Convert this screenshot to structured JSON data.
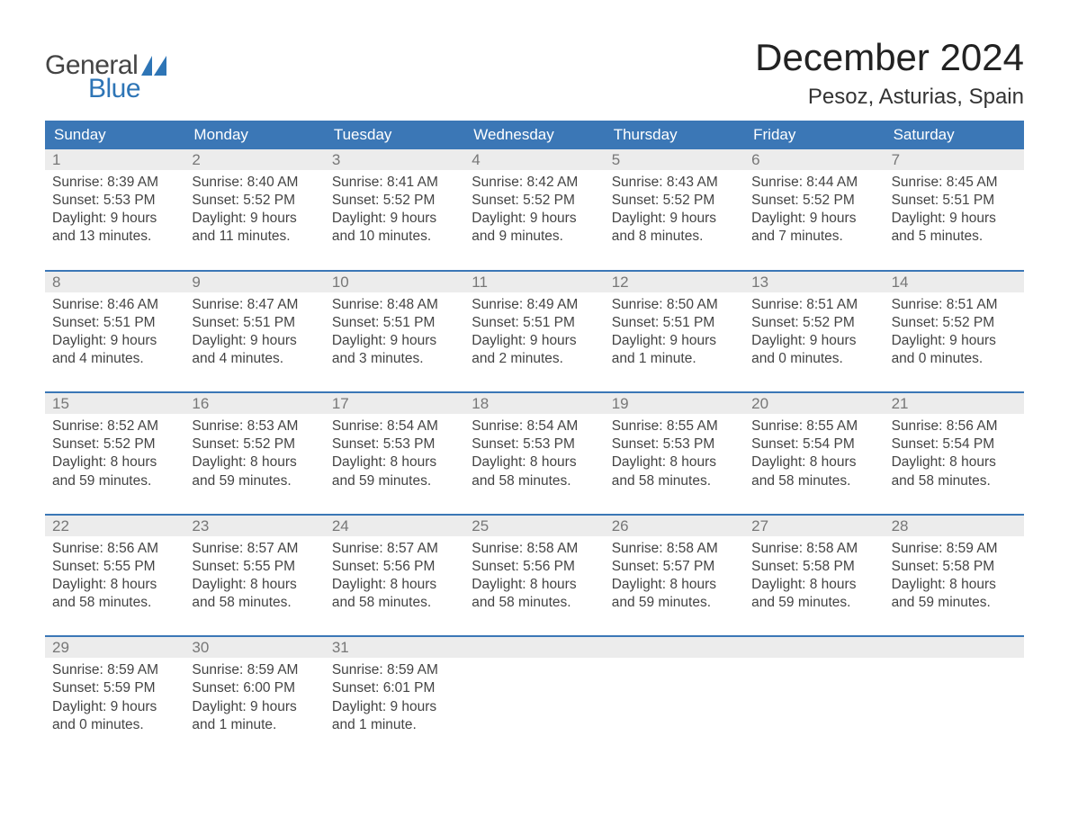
{
  "logo": {
    "text_general": "General",
    "text_blue": "Blue",
    "sail_color": "#2e75b6",
    "general_color": "#444444"
  },
  "header": {
    "title": "December 2024",
    "location": "Pesoz, Asturias, Spain"
  },
  "colors": {
    "header_bg": "#3b77b6",
    "header_text": "#ffffff",
    "daynum_bg": "#ececec",
    "daynum_text": "#777777",
    "body_text": "#444444",
    "week_border": "#3b77b6"
  },
  "days_of_week": [
    "Sunday",
    "Monday",
    "Tuesday",
    "Wednesday",
    "Thursday",
    "Friday",
    "Saturday"
  ],
  "weeks": [
    [
      {
        "n": "1",
        "sunrise": "Sunrise: 8:39 AM",
        "sunset": "Sunset: 5:53 PM",
        "dl1": "Daylight: 9 hours",
        "dl2": "and 13 minutes."
      },
      {
        "n": "2",
        "sunrise": "Sunrise: 8:40 AM",
        "sunset": "Sunset: 5:52 PM",
        "dl1": "Daylight: 9 hours",
        "dl2": "and 11 minutes."
      },
      {
        "n": "3",
        "sunrise": "Sunrise: 8:41 AM",
        "sunset": "Sunset: 5:52 PM",
        "dl1": "Daylight: 9 hours",
        "dl2": "and 10 minutes."
      },
      {
        "n": "4",
        "sunrise": "Sunrise: 8:42 AM",
        "sunset": "Sunset: 5:52 PM",
        "dl1": "Daylight: 9 hours",
        "dl2": "and 9 minutes."
      },
      {
        "n": "5",
        "sunrise": "Sunrise: 8:43 AM",
        "sunset": "Sunset: 5:52 PM",
        "dl1": "Daylight: 9 hours",
        "dl2": "and 8 minutes."
      },
      {
        "n": "6",
        "sunrise": "Sunrise: 8:44 AM",
        "sunset": "Sunset: 5:52 PM",
        "dl1": "Daylight: 9 hours",
        "dl2": "and 7 minutes."
      },
      {
        "n": "7",
        "sunrise": "Sunrise: 8:45 AM",
        "sunset": "Sunset: 5:51 PM",
        "dl1": "Daylight: 9 hours",
        "dl2": "and 5 minutes."
      }
    ],
    [
      {
        "n": "8",
        "sunrise": "Sunrise: 8:46 AM",
        "sunset": "Sunset: 5:51 PM",
        "dl1": "Daylight: 9 hours",
        "dl2": "and 4 minutes."
      },
      {
        "n": "9",
        "sunrise": "Sunrise: 8:47 AM",
        "sunset": "Sunset: 5:51 PM",
        "dl1": "Daylight: 9 hours",
        "dl2": "and 4 minutes."
      },
      {
        "n": "10",
        "sunrise": "Sunrise: 8:48 AM",
        "sunset": "Sunset: 5:51 PM",
        "dl1": "Daylight: 9 hours",
        "dl2": "and 3 minutes."
      },
      {
        "n": "11",
        "sunrise": "Sunrise: 8:49 AM",
        "sunset": "Sunset: 5:51 PM",
        "dl1": "Daylight: 9 hours",
        "dl2": "and 2 minutes."
      },
      {
        "n": "12",
        "sunrise": "Sunrise: 8:50 AM",
        "sunset": "Sunset: 5:51 PM",
        "dl1": "Daylight: 9 hours",
        "dl2": "and 1 minute."
      },
      {
        "n": "13",
        "sunrise": "Sunrise: 8:51 AM",
        "sunset": "Sunset: 5:52 PM",
        "dl1": "Daylight: 9 hours",
        "dl2": "and 0 minutes."
      },
      {
        "n": "14",
        "sunrise": "Sunrise: 8:51 AM",
        "sunset": "Sunset: 5:52 PM",
        "dl1": "Daylight: 9 hours",
        "dl2": "and 0 minutes."
      }
    ],
    [
      {
        "n": "15",
        "sunrise": "Sunrise: 8:52 AM",
        "sunset": "Sunset: 5:52 PM",
        "dl1": "Daylight: 8 hours",
        "dl2": "and 59 minutes."
      },
      {
        "n": "16",
        "sunrise": "Sunrise: 8:53 AM",
        "sunset": "Sunset: 5:52 PM",
        "dl1": "Daylight: 8 hours",
        "dl2": "and 59 minutes."
      },
      {
        "n": "17",
        "sunrise": "Sunrise: 8:54 AM",
        "sunset": "Sunset: 5:53 PM",
        "dl1": "Daylight: 8 hours",
        "dl2": "and 59 minutes."
      },
      {
        "n": "18",
        "sunrise": "Sunrise: 8:54 AM",
        "sunset": "Sunset: 5:53 PM",
        "dl1": "Daylight: 8 hours",
        "dl2": "and 58 minutes."
      },
      {
        "n": "19",
        "sunrise": "Sunrise: 8:55 AM",
        "sunset": "Sunset: 5:53 PM",
        "dl1": "Daylight: 8 hours",
        "dl2": "and 58 minutes."
      },
      {
        "n": "20",
        "sunrise": "Sunrise: 8:55 AM",
        "sunset": "Sunset: 5:54 PM",
        "dl1": "Daylight: 8 hours",
        "dl2": "and 58 minutes."
      },
      {
        "n": "21",
        "sunrise": "Sunrise: 8:56 AM",
        "sunset": "Sunset: 5:54 PM",
        "dl1": "Daylight: 8 hours",
        "dl2": "and 58 minutes."
      }
    ],
    [
      {
        "n": "22",
        "sunrise": "Sunrise: 8:56 AM",
        "sunset": "Sunset: 5:55 PM",
        "dl1": "Daylight: 8 hours",
        "dl2": "and 58 minutes."
      },
      {
        "n": "23",
        "sunrise": "Sunrise: 8:57 AM",
        "sunset": "Sunset: 5:55 PM",
        "dl1": "Daylight: 8 hours",
        "dl2": "and 58 minutes."
      },
      {
        "n": "24",
        "sunrise": "Sunrise: 8:57 AM",
        "sunset": "Sunset: 5:56 PM",
        "dl1": "Daylight: 8 hours",
        "dl2": "and 58 minutes."
      },
      {
        "n": "25",
        "sunrise": "Sunrise: 8:58 AM",
        "sunset": "Sunset: 5:56 PM",
        "dl1": "Daylight: 8 hours",
        "dl2": "and 58 minutes."
      },
      {
        "n": "26",
        "sunrise": "Sunrise: 8:58 AM",
        "sunset": "Sunset: 5:57 PM",
        "dl1": "Daylight: 8 hours",
        "dl2": "and 59 minutes."
      },
      {
        "n": "27",
        "sunrise": "Sunrise: 8:58 AM",
        "sunset": "Sunset: 5:58 PM",
        "dl1": "Daylight: 8 hours",
        "dl2": "and 59 minutes."
      },
      {
        "n": "28",
        "sunrise": "Sunrise: 8:59 AM",
        "sunset": "Sunset: 5:58 PM",
        "dl1": "Daylight: 8 hours",
        "dl2": "and 59 minutes."
      }
    ],
    [
      {
        "n": "29",
        "sunrise": "Sunrise: 8:59 AM",
        "sunset": "Sunset: 5:59 PM",
        "dl1": "Daylight: 9 hours",
        "dl2": "and 0 minutes."
      },
      {
        "n": "30",
        "sunrise": "Sunrise: 8:59 AM",
        "sunset": "Sunset: 6:00 PM",
        "dl1": "Daylight: 9 hours",
        "dl2": "and 1 minute."
      },
      {
        "n": "31",
        "sunrise": "Sunrise: 8:59 AM",
        "sunset": "Sunset: 6:01 PM",
        "dl1": "Daylight: 9 hours",
        "dl2": "and 1 minute."
      },
      null,
      null,
      null,
      null
    ]
  ]
}
